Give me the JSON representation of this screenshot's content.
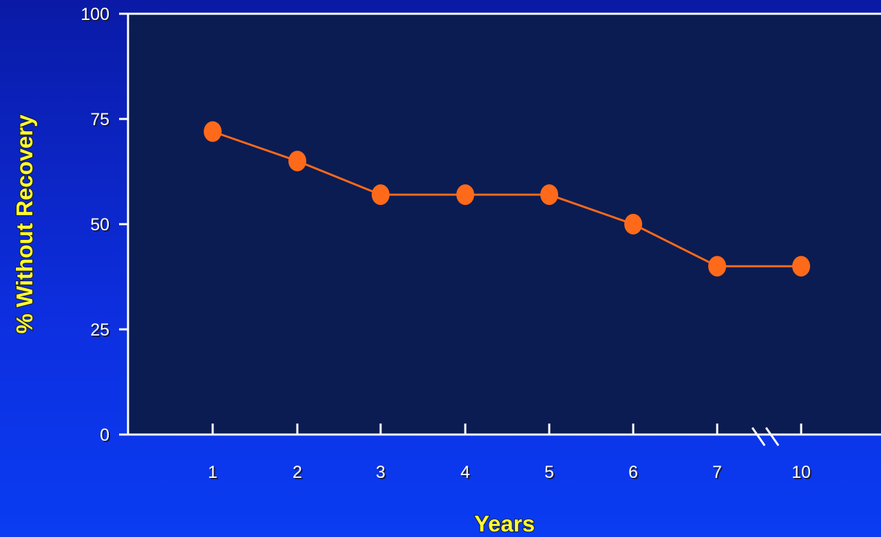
{
  "chart_data": {
    "type": "line",
    "title": "",
    "xlabel": "Years",
    "ylabel": "% Without Recovery",
    "categories": [
      "1",
      "2",
      "3",
      "4",
      "5",
      "6",
      "7",
      "10"
    ],
    "series": [
      {
        "values": [
          72,
          65,
          57,
          57,
          57,
          50,
          40,
          40
        ]
      }
    ],
    "ylim": [
      0,
      100
    ],
    "yticks": [
      0,
      25,
      50,
      75,
      100
    ],
    "x_axis_break": "between 7 and 10",
    "grid": false,
    "colors": {
      "plot_background": "#0b1c52",
      "page_background": "#0d2fe0",
      "line": "#ff6a1a",
      "marker": "#ff6a1a",
      "axis": "#ffffff",
      "axis_title": "#ffff33"
    }
  }
}
